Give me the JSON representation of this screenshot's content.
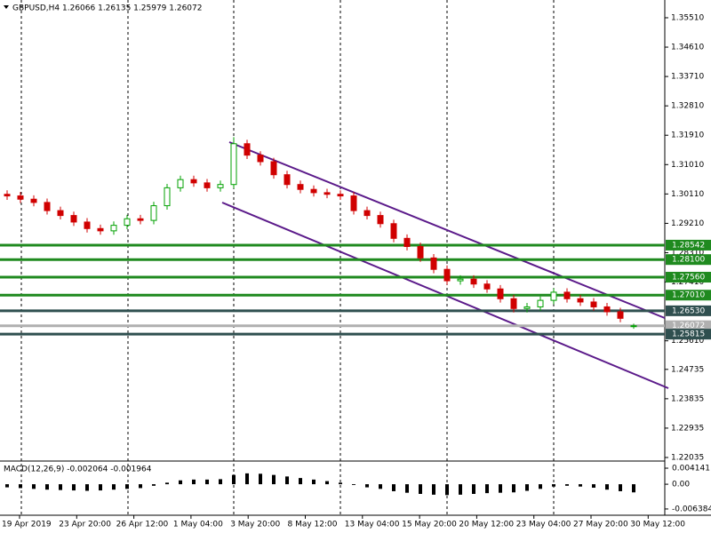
{
  "chart_data": [
    {
      "type": "candlestick",
      "title": "GBPUSD,H4  1.26066 1.26135 1.25979 1.26072",
      "up_color": "#00a000",
      "down_color": "#d00000",
      "open": [
        1.301,
        1.3005,
        1.2995,
        1.2985,
        1.296,
        1.2945,
        1.2925,
        1.2905,
        1.2898,
        1.2915,
        1.2935,
        1.293,
        1.2975,
        1.303,
        1.3055,
        1.3045,
        1.303,
        1.304,
        1.3165,
        1.313,
        1.311,
        1.307,
        1.304,
        1.3025,
        1.3015,
        1.301,
        1.3005,
        1.296,
        1.2945,
        1.292,
        1.2875,
        1.285,
        1.2815,
        1.278,
        1.2745,
        1.275,
        1.2735,
        1.272,
        1.269,
        1.266,
        1.2665,
        1.2685,
        1.271,
        1.269,
        1.268,
        1.2665,
        1.265,
        1.26066
      ],
      "high": [
        1.3022,
        1.3017,
        1.3007,
        1.2997,
        1.2972,
        1.2957,
        1.2937,
        1.2917,
        1.2927,
        1.2947,
        1.2947,
        1.2987,
        1.3042,
        1.3067,
        1.3067,
        1.3057,
        1.3052,
        1.3185,
        1.3177,
        1.3142,
        1.3122,
        1.3082,
        1.3052,
        1.3037,
        1.3027,
        1.3022,
        1.3017,
        1.2972,
        1.2957,
        1.2932,
        1.2887,
        1.2862,
        1.2827,
        1.2792,
        1.2762,
        1.2762,
        1.2747,
        1.2732,
        1.2702,
        1.2677,
        1.2697,
        1.2722,
        1.2722,
        1.2702,
        1.2692,
        1.2677,
        1.2662,
        1.26135
      ],
      "low": [
        1.2993,
        1.2983,
        1.2973,
        1.2948,
        1.2933,
        1.2913,
        1.2893,
        1.2886,
        1.2886,
        1.2903,
        1.2918,
        1.2918,
        1.2963,
        1.3018,
        1.3033,
        1.3018,
        1.3018,
        1.3028,
        1.3118,
        1.3098,
        1.3058,
        1.3028,
        1.3013,
        1.3003,
        1.2998,
        1.2993,
        1.2948,
        1.2933,
        1.2908,
        1.2863,
        1.2838,
        1.2803,
        1.2768,
        1.2733,
        1.2733,
        1.2723,
        1.2708,
        1.2678,
        1.2648,
        1.2648,
        1.2653,
        1.2673,
        1.2678,
        1.2668,
        1.2653,
        1.2638,
        1.2618,
        1.25979
      ],
      "close": [
        1.3005,
        1.2995,
        1.2985,
        1.296,
        1.2945,
        1.2925,
        1.2905,
        1.2898,
        1.2915,
        1.2935,
        1.293,
        1.2975,
        1.303,
        1.3055,
        1.3045,
        1.303,
        1.304,
        1.3165,
        1.313,
        1.311,
        1.307,
        1.304,
        1.3025,
        1.3015,
        1.301,
        1.3005,
        1.296,
        1.2945,
        1.292,
        1.2875,
        1.285,
        1.2815,
        1.278,
        1.2745,
        1.275,
        1.2735,
        1.272,
        1.269,
        1.266,
        1.2665,
        1.2685,
        1.271,
        1.269,
        1.268,
        1.2665,
        1.265,
        1.263,
        1.26072
      ],
      "ylim": [
        1.21953,
        1.36054
      ],
      "yticks": [
        {
          "value": 1.3551,
          "label": "1.35510"
        },
        {
          "value": 1.3461,
          "label": "1.34610"
        },
        {
          "value": 1.3371,
          "label": "1.33710"
        },
        {
          "value": 1.3281,
          "label": "1.32810"
        },
        {
          "value": 1.3191,
          "label": "1.31910"
        },
        {
          "value": 1.3101,
          "label": "1.31010"
        },
        {
          "value": 1.3011,
          "label": "1.30110"
        },
        {
          "value": 1.2921,
          "label": "1.29210"
        },
        {
          "value": 1.2831,
          "label": "1.28310"
        },
        {
          "value": 1.2741,
          "label": "1.27410"
        },
        {
          "value": 1.2561,
          "label": "1.25610"
        },
        {
          "value": 1.24735,
          "label": "1.24735"
        },
        {
          "value": 1.23835,
          "label": "1.23835"
        },
        {
          "value": 1.22935,
          "label": "1.22935"
        },
        {
          "value": 1.22035,
          "label": "1.22035"
        }
      ],
      "levels": [
        {
          "value": 1.28542,
          "label": "1.28542",
          "color": "#1f8a1f"
        },
        {
          "value": 1.281,
          "label": "1.28100",
          "color": "#1f8a1f"
        },
        {
          "value": 1.2756,
          "label": "1.27560",
          "color": "#1f8a1f"
        },
        {
          "value": 1.2701,
          "label": "1.27010",
          "color": "#1f8a1f"
        },
        {
          "value": 1.2653,
          "label": "1.26530",
          "color": "#2f4f4f"
        },
        {
          "value": 1.26072,
          "label": "1.26072",
          "color": "#b0b0b0"
        },
        {
          "value": 1.25815,
          "label": "1.25815",
          "color": "#2f4f4f"
        }
      ],
      "xtick_labels": [
        "19 Apr 2019",
        "23 Apr 20:00",
        "26 Apr 12:00",
        "1 May 04:00",
        "3 May 20:00",
        "8 May 12:00",
        "13 May 04:00",
        "15 May 20:00",
        "20 May 12:00",
        "23 May 04:00",
        "27 May 20:00",
        "30 May 12:00"
      ]
    },
    {
      "type": "bar",
      "title": "MACD(12,26,9) -0.002064 -0.001964",
      "color": "#000000",
      "values": [
        -0.0008,
        -0.001,
        -0.0012,
        -0.0014,
        -0.0015,
        -0.0016,
        -0.0017,
        -0.0016,
        -0.0014,
        -0.0012,
        -0.001,
        -0.0004,
        0.0004,
        0.001,
        0.0012,
        0.0012,
        0.0013,
        0.0024,
        0.0028,
        0.0027,
        0.0024,
        0.002,
        0.0016,
        0.0012,
        0.0008,
        0.0004,
        -0.0002,
        -0.0008,
        -0.0012,
        -0.0018,
        -0.0022,
        -0.0025,
        -0.0027,
        -0.0028,
        -0.0027,
        -0.0025,
        -0.0023,
        -0.0022,
        -0.0021,
        -0.0017,
        -0.0012,
        -0.0006,
        -0.0004,
        -0.0006,
        -0.0009,
        -0.0014,
        -0.0018,
        -0.0021
      ],
      "ylim": [
        -0.008,
        0.00575
      ],
      "yticks": [
        0.004141,
        {
          "value": 0,
          "label": "0.00"
        },
        -0.006384
      ]
    }
  ]
}
